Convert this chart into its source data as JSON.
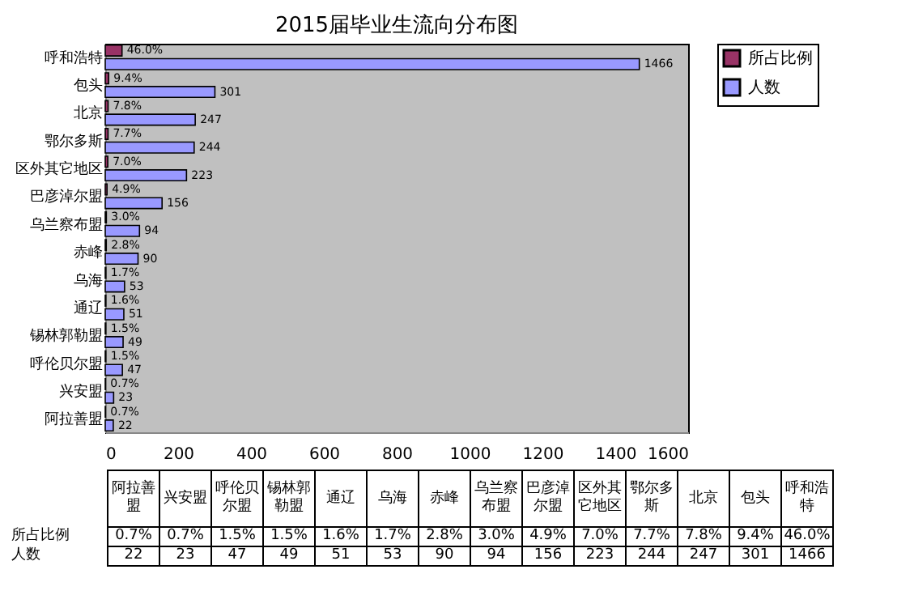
{
  "chart_data": {
    "type": "bar",
    "orientation": "horizontal",
    "title": "2015届毕业生流向分布图",
    "categories": [
      "呼和浩特",
      "包头",
      "北京",
      "鄂尔多斯",
      "区外其它地区",
      "巴彦淖尔盟",
      "乌兰察布盟",
      "赤峰",
      "乌海",
      "通辽",
      "锡林郭勒盟",
      "呼伦贝尔盟",
      "兴安盟",
      "阿拉善盟"
    ],
    "series": [
      {
        "name": "所占比例",
        "color": "#993366",
        "values": [
          46.0,
          9.4,
          7.8,
          7.7,
          7.0,
          4.9,
          3.0,
          2.8,
          1.7,
          1.6,
          1.5,
          1.5,
          0.7,
          0.7
        ],
        "value_labels": [
          "46.0%",
          "9.4%",
          "7.8%",
          "7.7%",
          "7.0%",
          "4.9%",
          "3.0%",
          "2.8%",
          "1.7%",
          "1.6%",
          "1.5%",
          "1.5%",
          "0.7%",
          "0.7%"
        ]
      },
      {
        "name": "人数",
        "color": "#9999ff",
        "values": [
          1466,
          301,
          247,
          244,
          223,
          156,
          94,
          90,
          53,
          51,
          49,
          47,
          23,
          22
        ],
        "value_labels": [
          "1466",
          "301",
          "247",
          "244",
          "223",
          "156",
          "94",
          "90",
          "53",
          "51",
          "49",
          "47",
          "23",
          "22"
        ]
      }
    ],
    "xlim": [
      0,
      1600
    ],
    "xticks": [
      0,
      200,
      400,
      600,
      800,
      1000,
      1200,
      1400,
      1600
    ],
    "grid": false,
    "legend": "top right"
  }
}
